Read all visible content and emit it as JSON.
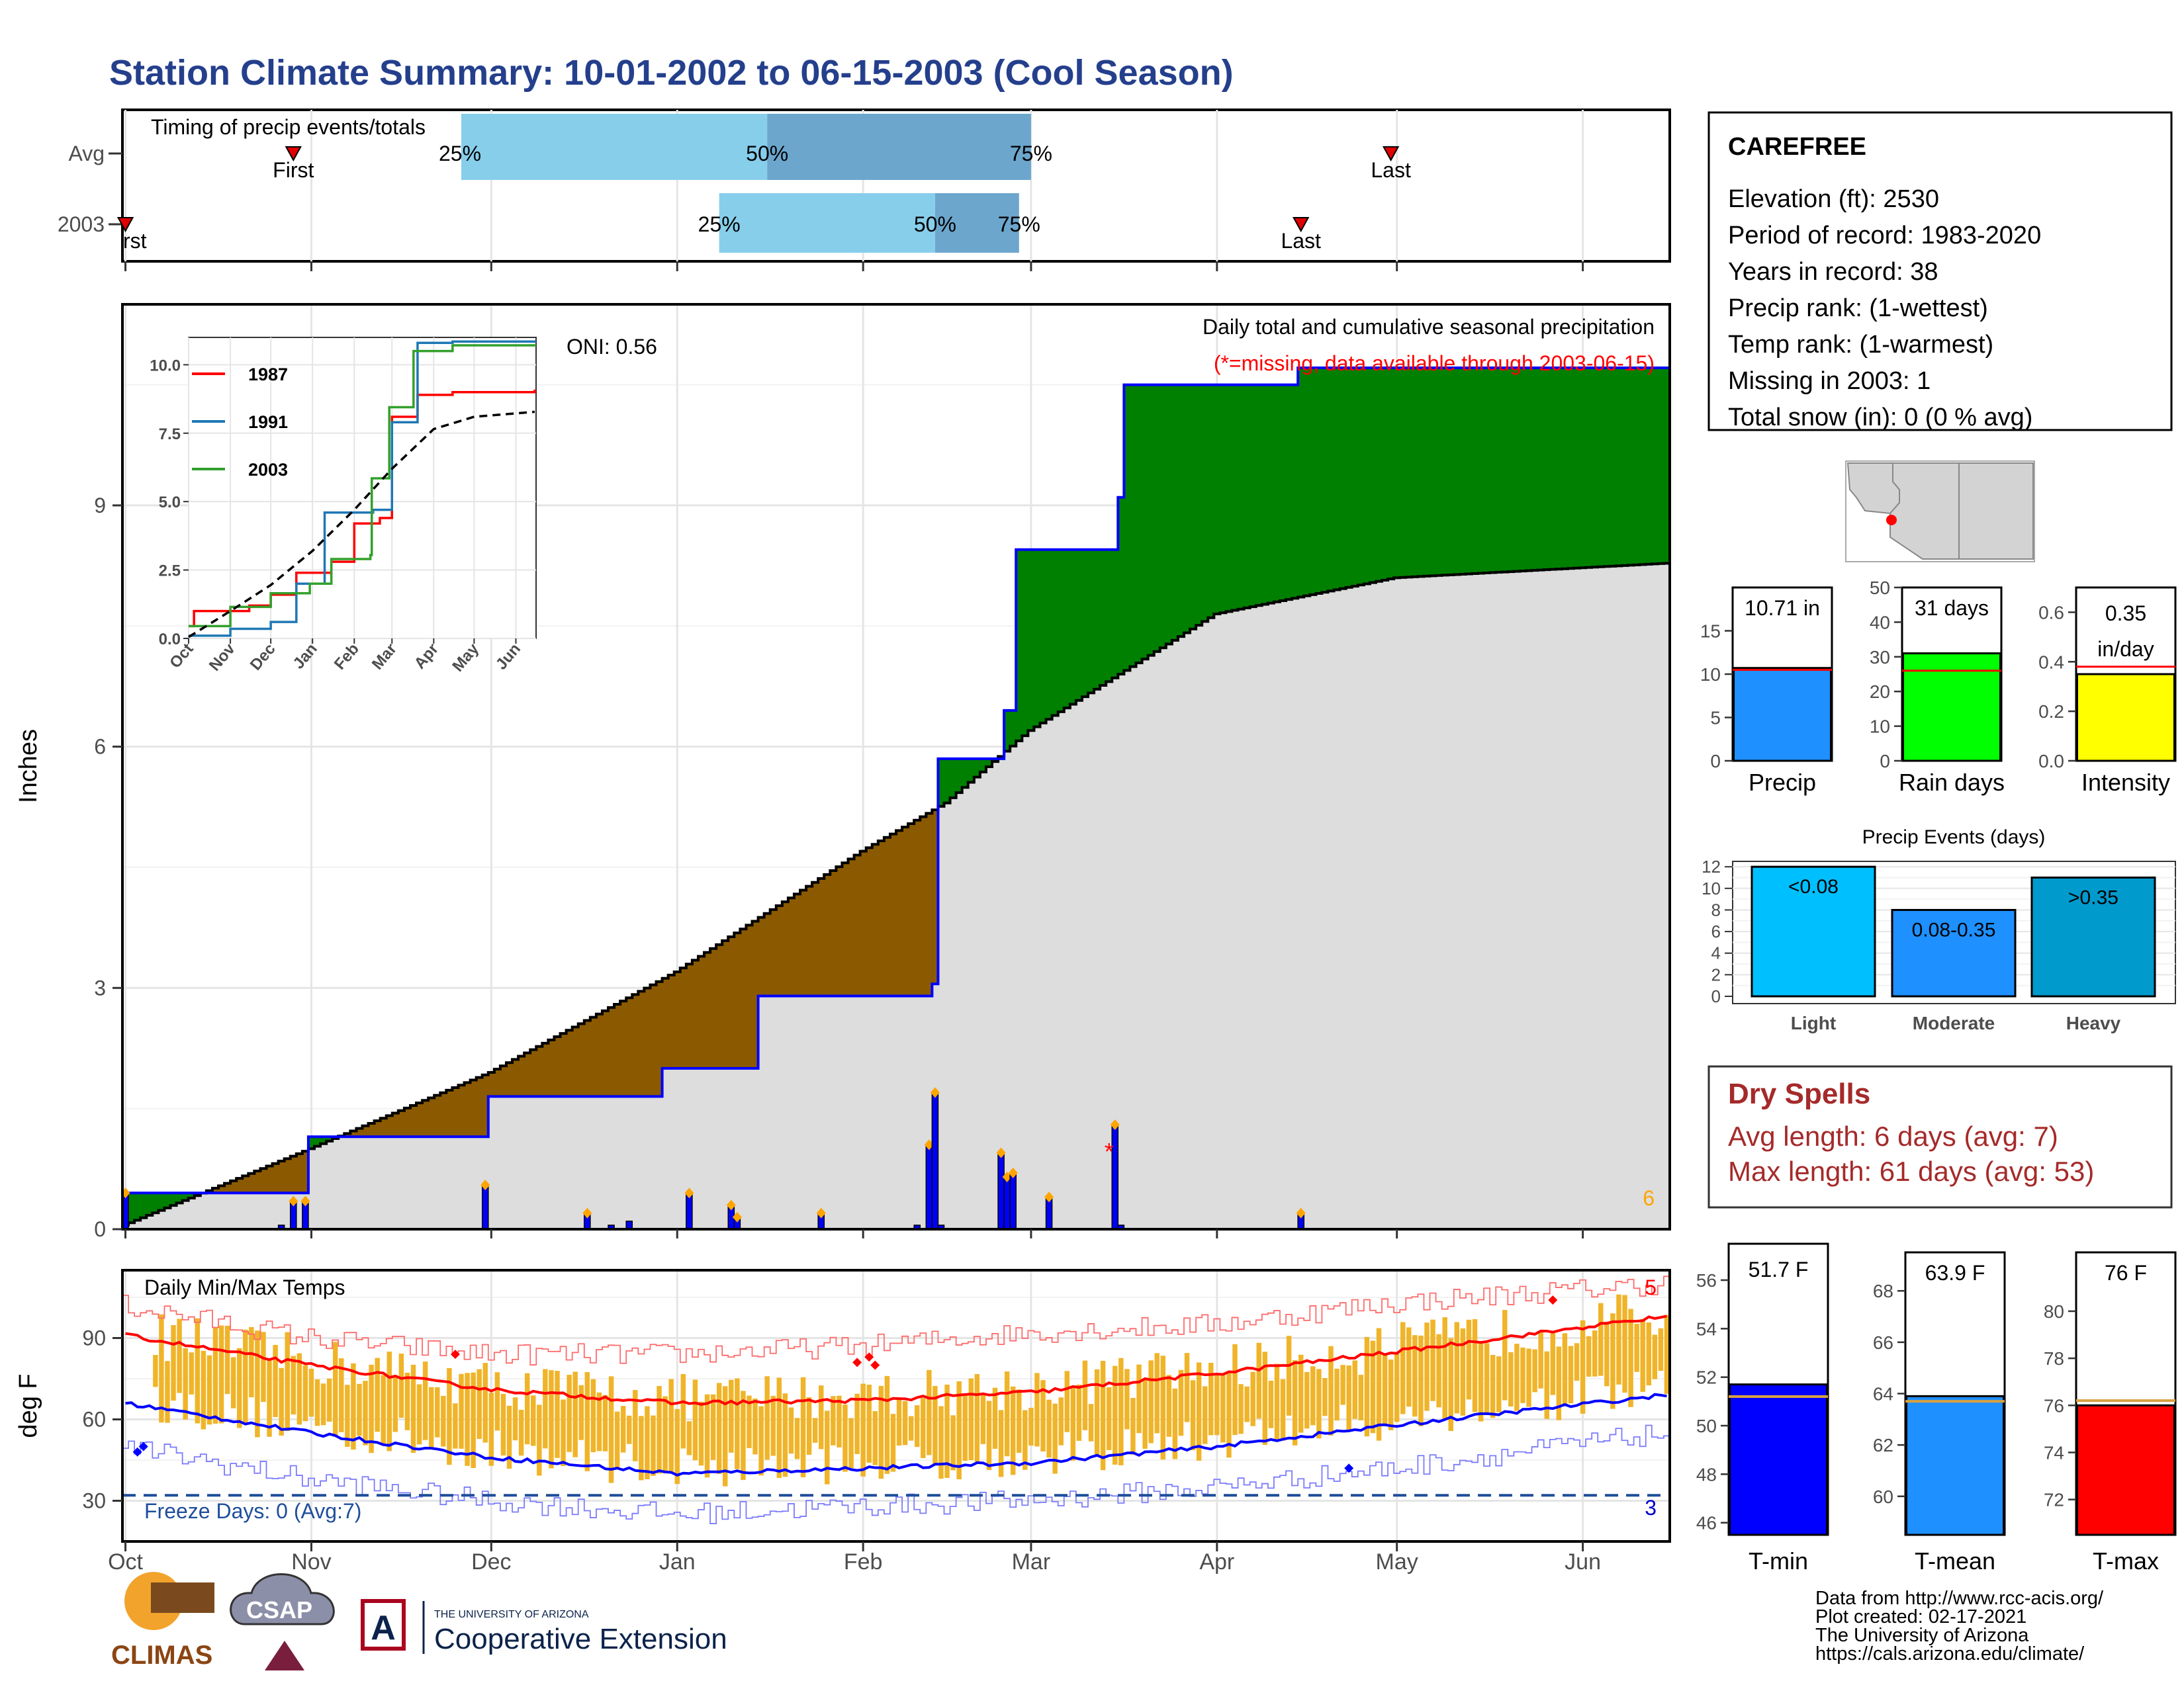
{
  "title": "Station Climate Summary: 10-01-2002 to 06-15-2003 (Cool Season)",
  "station": {
    "name": "CAREFREE",
    "lines": [
      "Elevation (ft): 2530",
      "Period of record: 1983-2020",
      "Years in record: 38",
      "Precip rank:  (1-wettest)",
      "Temp rank:  (1-warmest)",
      "Missing in 2003: 1",
      "Total snow (in): 0 (0 % avg)"
    ]
  },
  "month_labels": [
    "Oct",
    "Nov",
    "Dec",
    "Jan",
    "Feb",
    "Mar",
    "Apr",
    "May",
    "Jun"
  ],
  "timing": {
    "title": "Timing of precip events/totals",
    "row_labels": [
      "Avg",
      "2003"
    ],
    "pct_labels": [
      "25%",
      "50%",
      "75%"
    ],
    "first_label": "First",
    "last_label": "Last",
    "first_label_2003_clipped": "rst",
    "avg": {
      "first": "Oct 29",
      "p25": "Nov 26",
      "p50": "Jan 16",
      "p75": "Mar 1",
      "last": "Apr 30"
    },
    "y2003": {
      "first": "Oct 1",
      "p25": "Jan 8",
      "p50": "Feb 13",
      "p75": "Feb 27",
      "last": "Apr 15"
    }
  },
  "precip_panel": {
    "ylabel": "Inches",
    "yticks": [
      "0",
      "3",
      "6",
      "9"
    ],
    "annotation_title": "Daily total and cumulative seasonal precipitation",
    "annotation_missing": "(*=missing, data available through 2003-06-15)",
    "oni": "ONI: 0.56",
    "corner_count": "6",
    "colors": {
      "above_avg": "#008000",
      "below_avg": "#8B5A00",
      "avg_fill": "#DDDDDD",
      "obs_line": "#0000FF",
      "daily_bars": "#0000FF",
      "marker": "#FFA500"
    },
    "chart_data": {
      "type": "area",
      "x_unit": "date",
      "ylim": [
        0,
        11.5
      ],
      "cumulative_2003": [
        [
          "2002-10-01",
          0.45
        ],
        [
          "2002-11-01",
          1.15
        ],
        [
          "2002-12-01",
          1.65
        ],
        [
          "2002-12-30",
          2.0
        ],
        [
          "2003-01-15",
          2.9
        ],
        [
          "2003-02-13",
          3.05
        ],
        [
          "2003-02-14",
          5.85
        ],
        [
          "2003-02-25",
          6.45
        ],
        [
          "2003-02-27",
          8.45
        ],
        [
          "2003-03-16",
          9.1
        ],
        [
          "2003-03-17",
          10.5
        ],
        [
          "2003-04-15",
          10.71
        ],
        [
          "2003-06-15",
          10.71
        ]
      ],
      "cumulative_avg": [
        [
          "2002-10-01",
          0.05
        ],
        [
          "2002-11-01",
          1.0
        ],
        [
          "2002-12-01",
          1.95
        ],
        [
          "2003-01-01",
          3.2
        ],
        [
          "2003-02-01",
          4.7
        ],
        [
          "2003-02-15",
          5.3
        ],
        [
          "2003-03-01",
          6.2
        ],
        [
          "2003-04-01",
          7.65
        ],
        [
          "2003-05-01",
          8.1
        ],
        [
          "2003-06-15",
          8.28
        ]
      ],
      "daily_bars": [
        [
          "2002-10-01",
          0.45
        ],
        [
          "2002-10-27",
          0.05
        ],
        [
          "2002-10-29",
          0.35
        ],
        [
          "2002-10-31",
          0.35
        ],
        [
          "2002-11-30",
          0.55
        ],
        [
          "2002-12-17",
          0.2
        ],
        [
          "2002-12-21",
          0.05
        ],
        [
          "2002-12-24",
          0.1
        ],
        [
          "2003-01-03",
          0.45
        ],
        [
          "2003-01-10",
          0.3
        ],
        [
          "2003-01-11",
          0.15
        ],
        [
          "2003-01-25",
          0.2
        ],
        [
          "2003-02-10",
          0.05
        ],
        [
          "2003-02-12",
          1.05
        ],
        [
          "2003-02-13",
          1.7
        ],
        [
          "2003-02-14",
          0.05
        ],
        [
          "2003-02-24",
          0.95
        ],
        [
          "2003-02-25",
          0.65
        ],
        [
          "2003-02-26",
          0.7
        ],
        [
          "2003-03-04",
          0.4
        ],
        [
          "2003-03-15",
          1.3
        ],
        [
          "2003-03-16",
          0.05
        ],
        [
          "2003-04-15",
          0.2
        ]
      ],
      "missing_days": [
        [
          "2003-03-14",
          0.98
        ]
      ]
    }
  },
  "inset": {
    "series": [
      {
        "name": "1987",
        "color": "#FF0000"
      },
      {
        "name": "1991",
        "color": "#1F78B4"
      },
      {
        "name": "2003",
        "color": "#33A02C"
      }
    ],
    "yticks": [
      "0.0",
      "2.5",
      "5.0",
      "7.5",
      "10.0"
    ],
    "xticks": [
      "Oct",
      "Nov",
      "Dec",
      "Jan",
      "Feb",
      "Mar",
      "Apr",
      "May",
      "Jun"
    ],
    "chart_data": {
      "type": "line",
      "x_unit": "date",
      "ylim": [
        0,
        11
      ],
      "series": [
        {
          "name": "1987",
          "points": [
            [
              "Oct 1",
              0.45
            ],
            [
              "Oct 5",
              1.0
            ],
            [
              "Nov 15",
              1.2
            ],
            [
              "Dec 1",
              1.6
            ],
            [
              "Dec 20",
              2.4
            ],
            [
              "Jan 15",
              2.8
            ],
            [
              "Feb 1",
              4.2
            ],
            [
              "Feb 20",
              4.4
            ],
            [
              "Mar 1",
              8.1
            ],
            [
              "Mar 20",
              8.9
            ],
            [
              "Apr 15",
              9.0
            ],
            [
              "Jun 15",
              9.05
            ]
          ]
        },
        {
          "name": "1991",
          "points": [
            [
              "Oct 1",
              0.1
            ],
            [
              "Nov 1",
              0.35
            ],
            [
              "Dec 1",
              0.6
            ],
            [
              "Dec 20",
              2.0
            ],
            [
              "Jan 10",
              4.6
            ],
            [
              "Feb 15",
              4.7
            ],
            [
              "Mar 1",
              7.9
            ],
            [
              "Mar 20",
              10.8
            ],
            [
              "Apr 15",
              10.85
            ],
            [
              "Jun 15",
              10.85
            ]
          ]
        },
        {
          "name": "2003",
          "points": [
            [
              "Oct 1",
              0.45
            ],
            [
              "Nov 1",
              1.15
            ],
            [
              "Dec 1",
              1.65
            ],
            [
              "Dec 30",
              2.0
            ],
            [
              "Jan 15",
              2.9
            ],
            [
              "Feb 13",
              3.05
            ],
            [
              "Feb 14",
              5.85
            ],
            [
              "Feb 27",
              8.45
            ],
            [
              "Mar 17",
              10.5
            ],
            [
              "Apr 15",
              10.71
            ],
            [
              "Jun 15",
              10.71
            ]
          ]
        },
        {
          "name": "avg",
          "points": [
            [
              "Oct 1",
              0.05
            ],
            [
              "Nov 1",
              1.0
            ],
            [
              "Dec 1",
              1.95
            ],
            [
              "Jan 1",
              3.2
            ],
            [
              "Feb 1",
              4.7
            ],
            [
              "Mar 1",
              6.2
            ],
            [
              "Apr 1",
              7.65
            ],
            [
              "May 1",
              8.1
            ],
            [
              "Jun 15",
              8.28
            ]
          ]
        }
      ]
    }
  },
  "temp_panel": {
    "title": "Daily Min/Max Temps",
    "ylabel": "deg F",
    "yticks": [
      "30",
      "60",
      "90"
    ],
    "freeze": "Freeze Days: 0 (Avg:7)",
    "count_hot": "5",
    "count_cold": "3",
    "chart_data": {
      "type": "bar",
      "ylim": [
        15,
        115
      ],
      "freeze_line": 32,
      "avg_max": [
        [
          "Oct 1",
          91
        ],
        [
          "Nov 1",
          80
        ],
        [
          "Dec 1",
          71
        ],
        [
          "Jan 1",
          66
        ],
        [
          "Feb 1",
          67
        ],
        [
          "Mar 1",
          70
        ],
        [
          "Apr 1",
          77
        ],
        [
          "May 1",
          85
        ],
        [
          "Jun 15",
          98
        ]
      ],
      "avg_min": [
        [
          "Oct 1",
          66
        ],
        [
          "Nov 1",
          55
        ],
        [
          "Dec 1",
          46
        ],
        [
          "Jan 1",
          40
        ],
        [
          "Feb 1",
          42
        ],
        [
          "Mar 1",
          44
        ],
        [
          "Apr 1",
          50
        ],
        [
          "May 1",
          58
        ],
        [
          "Jun 15",
          69
        ]
      ],
      "record_max": [
        [
          "Oct 1",
          102
        ],
        [
          "Nov 1",
          90
        ],
        [
          "Dec 1",
          84
        ],
        [
          "Jan 1",
          84
        ],
        [
          "Feb 1",
          87
        ],
        [
          "Mar 1",
          92
        ],
        [
          "Apr 1",
          95
        ],
        [
          "May 1",
          103
        ],
        [
          "Jun 15",
          110
        ]
      ],
      "record_min": [
        [
          "Oct 1",
          50
        ],
        [
          "Nov 1",
          38
        ],
        [
          "Dec 1",
          30
        ],
        [
          "Jan 1",
          25
        ],
        [
          "Feb 1",
          28
        ],
        [
          "Mar 1",
          30
        ],
        [
          "Apr 1",
          35
        ],
        [
          "May 1",
          42
        ],
        [
          "Jun 15",
          55
        ]
      ]
    }
  },
  "summary_bars": {
    "precip": {
      "label": "Precip",
      "value": 10.71,
      "avg": 10.5,
      "value_label": "10.71 in",
      "yticks": [
        "0",
        "5",
        "10",
        "15"
      ],
      "ylim": [
        0,
        20
      ],
      "color": "#1E90FF"
    },
    "rain_days": {
      "label": "Rain days",
      "value": 31,
      "avg": 26,
      "value_label": "31 days",
      "yticks": [
        "0",
        "10",
        "20",
        "30",
        "40",
        "50"
      ],
      "ylim": [
        0,
        50
      ],
      "color": "#00FF00"
    },
    "intensity": {
      "label": "Intensity",
      "value": 0.35,
      "avg": 0.38,
      "value_label_1": "0.35",
      "value_label_2": "in/day",
      "yticks": [
        "0.0",
        "0.2",
        "0.4",
        "0.6"
      ],
      "ylim": [
        0,
        0.7
      ],
      "color": "#FFFF00"
    }
  },
  "precip_events": {
    "title": "Precip Events (days)",
    "yticks": [
      "0",
      "2",
      "4",
      "6",
      "8",
      "10",
      "12"
    ],
    "chart_data": {
      "type": "bar",
      "categories": [
        "Light",
        "Moderate",
        "Heavy"
      ],
      "values": [
        12,
        8,
        11
      ],
      "bar_labels": [
        "<0.08",
        "0.08-0.35",
        ">0.35"
      ],
      "ylim": [
        0,
        12.5
      ],
      "colors": [
        "#00BFFF",
        "#1E90FF",
        "#009ACD"
      ]
    }
  },
  "dry_spells": {
    "title": "Dry Spells",
    "avg": "Avg length: 6 days (avg: 7)",
    "max": "Max length: 61 days (avg: 53)"
  },
  "temp_summary": {
    "tmin": {
      "label": "T-min",
      "value": 51.7,
      "avg": 51.2,
      "value_label": "51.7 F",
      "yticks": [
        "46",
        "48",
        "50",
        "52",
        "54",
        "56"
      ],
      "ylim": [
        45.5,
        57.5
      ],
      "color": "#0000FF"
    },
    "tmean": {
      "label": "T-mean",
      "value": 63.9,
      "avg": 63.7,
      "value_label": "63.9 F",
      "yticks": [
        "60",
        "62",
        "64",
        "66",
        "68"
      ],
      "ylim": [
        58.5,
        69.5
      ],
      "color": "#1E90FF"
    },
    "tmax": {
      "label": "T-max",
      "value": 76,
      "avg": 76.2,
      "value_label": "76 F",
      "yticks": [
        "72",
        "74",
        "76",
        "78",
        "80"
      ],
      "ylim": [
        70.5,
        82.5
      ],
      "color": "#FF0000"
    }
  },
  "credits": [
    "Data from http://www.rcc-acis.org/",
    "Plot created: 02-17-2021",
    "The University of Arizona",
    "https://cals.arizona.edu/climate/"
  ],
  "logos": {
    "climas": "CLIMAS",
    "csap": "CSAP",
    "ua_small": "THE UNIVERSITY OF ARIZONA",
    "ua_big": "Cooperative Extension"
  }
}
